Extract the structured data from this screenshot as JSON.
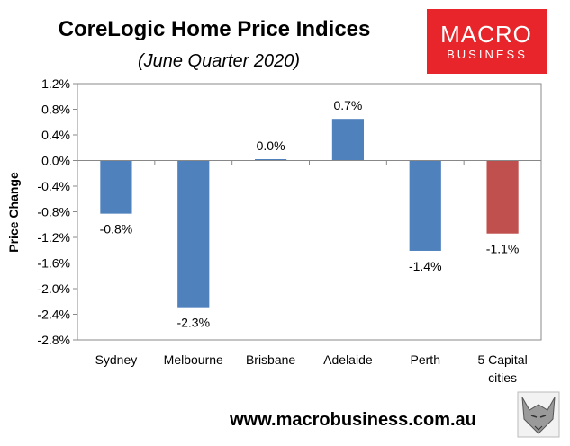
{
  "chart_data": {
    "type": "bar",
    "title": "CoreLogic Home Price Indices",
    "subtitle": "(June Quarter 2020)",
    "xlabel": "",
    "ylabel": "Price Change",
    "ylim": [
      -2.8,
      1.2
    ],
    "yticks": [
      "1.2%",
      "0.8%",
      "0.4%",
      "0.0%",
      "-0.4%",
      "-0.8%",
      "-1.2%",
      "-1.6%",
      "-2.0%",
      "-2.4%",
      "-2.8%"
    ],
    "categories": [
      "Sydney",
      "Melbourne",
      "Brisbane",
      "Adelaide",
      "Perth",
      "5 Capital cities"
    ],
    "values": [
      -0.8,
      -2.3,
      0.0,
      0.7,
      -1.4,
      -1.1
    ],
    "bar_values_exact": [
      -0.83,
      -2.29,
      0.02,
      0.65,
      -1.41,
      -1.14
    ],
    "data_labels": [
      "-0.8%",
      "-2.3%",
      "0.0%",
      "0.7%",
      "-1.4%",
      "-1.1%"
    ],
    "colors": [
      "#4f81bd",
      "#4f81bd",
      "#4f81bd",
      "#4f81bd",
      "#4f81bd",
      "#c0504d"
    ],
    "grid": false,
    "legend": "none"
  },
  "branding": {
    "logo_line1": "MACRO",
    "logo_line2": "BUSINESS",
    "logo_color": "#e8252a",
    "url": "www.macrobusiness.com.au"
  }
}
